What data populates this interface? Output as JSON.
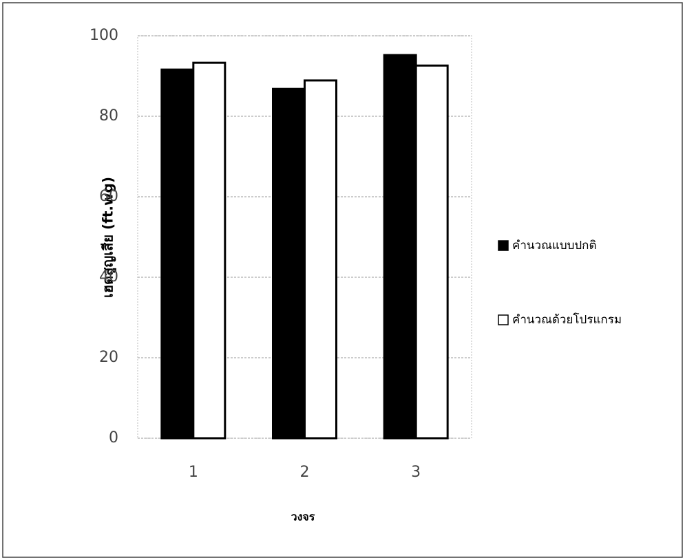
{
  "chart_data": {
    "type": "bar",
    "y_label": "เฮดสูญเสีย (ft.wg)",
    "x_label": "วงจร",
    "categories": [
      "1",
      "2",
      "3"
    ],
    "series": [
      {
        "name": "คำนวณแบบปกติ",
        "color": "#000000",
        "values": [
          91.6,
          86.8,
          95.2
        ]
      },
      {
        "name": "คำนวณด้วยโปรแกรม",
        "color": "#ffffff",
        "values": [
          93.3,
          88.9,
          92.6
        ]
      }
    ],
    "ylim": [
      0,
      100
    ],
    "yticks": [
      0,
      20,
      40,
      60,
      80,
      100
    ],
    "grid": true,
    "legend": "right"
  }
}
